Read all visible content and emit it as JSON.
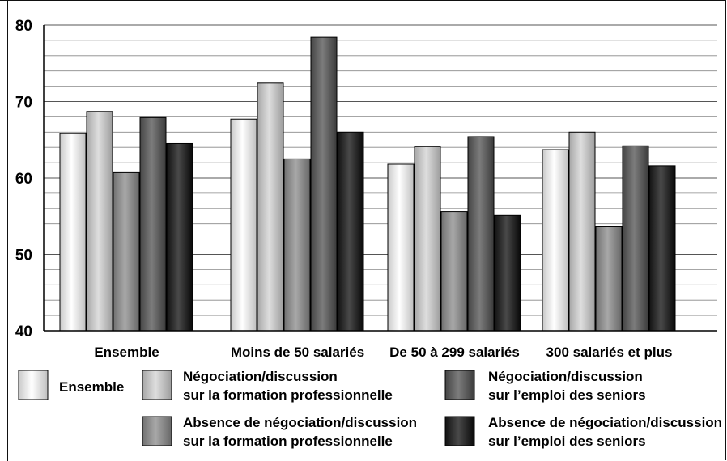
{
  "chart_data": {
    "type": "bar",
    "title": "",
    "xlabel": "",
    "ylabel": "",
    "ylim": [
      40,
      80
    ],
    "yticks": [
      "40",
      "50",
      "60",
      "70",
      "80"
    ],
    "grid": true,
    "legend_position": "bottom",
    "categories": [
      "Ensemble",
      "Moins de 50 salariés",
      "De 50 à 299 salariés",
      "300 salariés et plus"
    ],
    "series": [
      {
        "name": "Ensemble",
        "values": [
          65.8,
          67.7,
          61.8,
          63.7
        ],
        "color": "#e2e2e2"
      },
      {
        "name": "Négociation/discussion sur la formation professionnelle",
        "values": [
          68.7,
          72.4,
          64.1,
          66.0
        ],
        "color": "#c0c0c0"
      },
      {
        "name": "Absence de négociation/discussion sur la formation professionnelle",
        "values": [
          60.7,
          62.5,
          55.6,
          53.6
        ],
        "color": "#8a8a8a"
      },
      {
        "name": "Négociation/discussion sur l’emploi des seniors",
        "values": [
          67.9,
          78.4,
          65.4,
          64.2
        ],
        "color": "#5e5e5e"
      },
      {
        "name": "Absence de négociation/discussion sur l’emploi des seniors",
        "values": [
          64.5,
          66.0,
          55.1,
          61.6
        ],
        "color": "#2b2b2b"
      }
    ]
  },
  "legend": {
    "ensemble": "Ensemble",
    "nego_formation_l1": "Négociation/discussion",
    "nego_formation_l2": "sur la formation professionnelle",
    "nego_seniors_l1": "Négociation/discussion",
    "nego_seniors_l2": "sur l’emploi des seniors",
    "absence_formation_l1": "Absence de négociation/discussion",
    "absence_formation_l2": "sur la formation professionnelle",
    "absence_seniors_l1": "Absence de négociation/discussion",
    "absence_seniors_l2": "sur l’emploi des seniors"
  }
}
